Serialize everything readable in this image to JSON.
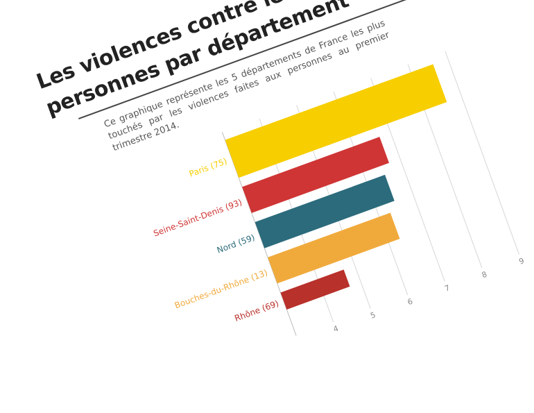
{
  "header": {
    "title_line_1": "Les violences contre les",
    "title_line_2": "personnes par département"
  },
  "description": "Ce graphique représente les 5 départements de France les plus touchés par les violences faites aux personnes au premier trimestre 2014.",
  "chart_data": {
    "type": "bar",
    "orientation": "horizontal",
    "title": "Les violences contre les personnes par département",
    "categories": [
      "Paris (75)",
      "Seine-Saint-Denis (93)",
      "Nord (59)",
      "Bouches-du-Rhône (13)",
      "Rhône (69)"
    ],
    "values": [
      8.6,
      6.7,
      6.5,
      6.3,
      4.7
    ],
    "colors": [
      "#f7ce00",
      "#cf3535",
      "#2b6b7c",
      "#f0aa3c",
      "#b8312b"
    ],
    "xlim": [
      3,
      9
    ],
    "xticks": [
      "4",
      "5",
      "6",
      "7",
      "8",
      "9"
    ],
    "grid": true,
    "legend": "none"
  }
}
